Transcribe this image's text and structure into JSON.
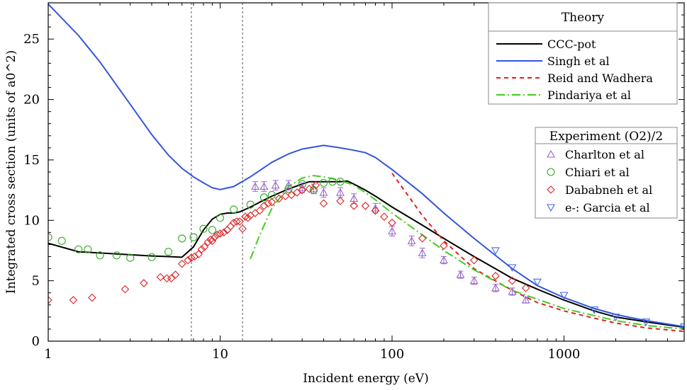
{
  "chart_data": {
    "type": "line",
    "xlabel": "Incident energy (eV)",
    "ylabel": "Integrated cross section (units of a0^2)",
    "xscale": "log",
    "xlim": [
      1,
      5000
    ],
    "ylim": [
      0,
      28
    ],
    "xticks": [
      {
        "value": 1,
        "label": "1"
      },
      {
        "value": 10,
        "label": "10"
      },
      {
        "value": 100,
        "label": "100"
      },
      {
        "value": 1000,
        "label": "1000"
      }
    ],
    "yticks": [
      {
        "value": 0,
        "label": "0"
      },
      {
        "value": 5,
        "label": "5"
      },
      {
        "value": 10,
        "label": "10"
      },
      {
        "value": 15,
        "label": "15"
      },
      {
        "value": 20,
        "label": "20"
      },
      {
        "value": 25,
        "label": "25"
      }
    ],
    "vlines": [
      6.8,
      13.5
    ],
    "grid": false,
    "legend_theory_title": "Theory",
    "legend_experiment_title": "Experiment (O2)/2",
    "theory": [
      {
        "name": "CCC-pot",
        "color": "#000000",
        "dash": "solid",
        "x": [
          1,
          1.5,
          2,
          3,
          4,
          5,
          6,
          7,
          8,
          9,
          10,
          11,
          12,
          13,
          14,
          15,
          17,
          20,
          25,
          30,
          33,
          40,
          50,
          55,
          60,
          70,
          80,
          100,
          150,
          200,
          300,
          500,
          700,
          1000,
          1500,
          2000,
          3000,
          5000
        ],
        "y": [
          8.1,
          7.4,
          7.3,
          7.15,
          7.05,
          7.0,
          6.95,
          7.8,
          9.2,
          10.1,
          10.5,
          10.6,
          10.6,
          10.7,
          10.9,
          11.1,
          11.5,
          12.0,
          12.6,
          13.0,
          13.2,
          13.2,
          13.2,
          13.25,
          13.0,
          12.5,
          12.0,
          11.1,
          9.6,
          8.5,
          7.0,
          5.2,
          4.3,
          3.4,
          2.5,
          2.0,
          1.6,
          1.15
        ]
      },
      {
        "name": "Singh et al",
        "color": "#3355dd",
        "dash": "solid",
        "x": [
          1,
          1.5,
          2,
          3,
          4,
          5,
          6,
          7,
          8,
          9,
          10,
          12,
          15,
          20,
          25,
          30,
          40,
          50,
          60,
          70,
          80,
          100,
          150,
          200,
          300,
          500,
          700,
          1000,
          1500,
          2000,
          3000,
          5000
        ],
        "y": [
          27.9,
          25.3,
          23.1,
          19.6,
          17.1,
          15.4,
          14.3,
          13.6,
          13.1,
          12.7,
          12.55,
          12.8,
          13.6,
          14.8,
          15.5,
          15.9,
          16.2,
          16.0,
          15.8,
          15.6,
          15.2,
          14.2,
          12.2,
          10.6,
          8.5,
          6.0,
          4.6,
          3.6,
          2.7,
          2.2,
          1.7,
          1.2
        ]
      },
      {
        "name": "Reid and Wadhera",
        "color": "#e02020",
        "dash": "6,5",
        "x": [
          100,
          150,
          200,
          300,
          500,
          700,
          1000,
          1500,
          2000,
          3000,
          5000
        ],
        "y": [
          13.9,
          10.4,
          8.3,
          6.0,
          4.2,
          3.2,
          2.5,
          1.9,
          1.5,
          1.1,
          0.8
        ]
      },
      {
        "name": "Pindariya et al",
        "color": "#44cc22",
        "dash": "12,4,2,4",
        "x": [
          15,
          17,
          20,
          25,
          30,
          35,
          40,
          50,
          60,
          70,
          80,
          100,
          150,
          200,
          300,
          500,
          1000,
          2000,
          3000,
          5000
        ],
        "y": [
          6.8,
          8.8,
          11.0,
          12.8,
          13.5,
          13.7,
          13.6,
          13.3,
          12.9,
          12.3,
          11.7,
          10.6,
          8.8,
          7.5,
          5.9,
          4.2,
          2.7,
          1.7,
          1.3,
          1.0
        ]
      }
    ],
    "experiment": [
      {
        "name": "Charlton et al",
        "marker": "triangle-up",
        "color": "#9966cc",
        "x": [
          16,
          18,
          21,
          25,
          30,
          35,
          40,
          50,
          60,
          80,
          100,
          130,
          150,
          200,
          250,
          300,
          400,
          500,
          600
        ],
        "y": [
          12.8,
          12.8,
          12.9,
          12.9,
          12.7,
          12.6,
          12.3,
          12.3,
          11.8,
          11.0,
          9.1,
          8.3,
          7.3,
          6.7,
          5.5,
          5.0,
          4.4,
          4.1,
          3.4
        ],
        "err": [
          0.4,
          0.4,
          0.4,
          0.4,
          0.4,
          0.4,
          0.4,
          0.4,
          0.4,
          0.4,
          0.4,
          0.4,
          0.4,
          0.3,
          0.3,
          0.3,
          0.3,
          0.3,
          0.25
        ]
      },
      {
        "name": "Chiari et al",
        "marker": "circle",
        "color": "#33aa22",
        "x": [
          1,
          1.2,
          1.5,
          1.7,
          2,
          2.5,
          3,
          4,
          5,
          6,
          7,
          8,
          9,
          10,
          12,
          15,
          18,
          20,
          25,
          30,
          35,
          40,
          45,
          50
        ],
        "y": [
          8.6,
          8.3,
          7.6,
          7.6,
          7.1,
          7.1,
          6.9,
          6.95,
          7.4,
          8.5,
          8.6,
          9.3,
          9.2,
          10.2,
          10.9,
          11.3,
          11.9,
          12.1,
          12.6,
          13.0,
          12.5,
          13.1,
          13.2,
          13.2
        ]
      },
      {
        "name": "Dababneh et al",
        "marker": "diamond",
        "color": "#e02020",
        "x": [
          1,
          1.4,
          1.8,
          2.8,
          3.6,
          4.5,
          4.9,
          5.2,
          5.5,
          6.0,
          6.5,
          6.8,
          7.1,
          7.5,
          7.8,
          8.1,
          8.5,
          8.8,
          9.0,
          9.3,
          9.6,
          10.0,
          10.5,
          11.0,
          11.5,
          12.0,
          12.5,
          13.0,
          13.5,
          14.0,
          14.5,
          15.0,
          16.0,
          17.0,
          18.0,
          19.0,
          20.0,
          22.0,
          24.0,
          26.0,
          28.0,
          30.0,
          33.0,
          36.0,
          40.0,
          50.0,
          60.0,
          70.0,
          80.0,
          90.0,
          100.0,
          150.0,
          200.0,
          300.0,
          400.0,
          500.0,
          600.0
        ],
        "y": [
          3.4,
          3.4,
          3.6,
          4.3,
          4.8,
          5.3,
          5.2,
          5.2,
          5.5,
          6.4,
          6.7,
          6.9,
          7.0,
          7.2,
          7.6,
          7.8,
          8.2,
          8.4,
          8.3,
          8.6,
          8.8,
          8.9,
          9.0,
          9.2,
          9.5,
          9.8,
          9.9,
          9.9,
          9.3,
          10.3,
          10.2,
          10.4,
          10.6,
          10.8,
          11.2,
          11.4,
          11.5,
          11.8,
          12.0,
          12.1,
          12.3,
          12.5,
          12.6,
          12.9,
          11.4,
          11.6,
          11.2,
          11.2,
          10.8,
          10.3,
          9.8,
          8.5,
          7.9,
          6.7,
          5.4,
          5.0,
          4.4
        ]
      },
      {
        "name": "e-: Garcia et al",
        "marker": "triangle-down",
        "color": "#4466ee",
        "x": [
          400,
          500,
          700,
          1000,
          1500,
          2000,
          3000,
          5000
        ],
        "y": [
          7.5,
          6.1,
          4.9,
          3.8,
          2.6,
          2.0,
          1.6,
          1.2
        ]
      }
    ]
  }
}
